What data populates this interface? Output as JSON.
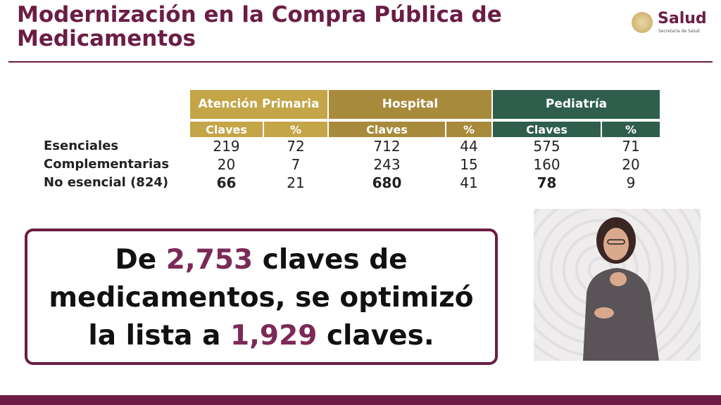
{
  "header": {
    "title": "Modernización en la Compra Pública de Medicamentos"
  },
  "logo": {
    "name": "Salud",
    "subtitle": "Secretaría de Salud"
  },
  "table": {
    "groups": [
      "Atención Primaria",
      "Hospital",
      "Pediatría"
    ],
    "subheaders": [
      "Claves",
      "%"
    ],
    "rows": [
      {
        "label": "Esenciales",
        "values": [
          219,
          72,
          712,
          44,
          575,
          71
        ]
      },
      {
        "label": "Complementarias",
        "values": [
          20,
          7,
          243,
          15,
          160,
          20
        ]
      },
      {
        "label": "No esencial (824)",
        "values": [
          66,
          21,
          680,
          41,
          78,
          9
        ]
      }
    ]
  },
  "callout": {
    "lines": [
      [
        {
          "text": "De"
        },
        {
          "text": "2,753",
          "highlight": true
        },
        {
          "text": "claves de"
        }
      ],
      [
        {
          "text": "medicamentos, se optimizó"
        }
      ],
      [
        {
          "text": "la lista a"
        },
        {
          "text": "1,929",
          "highlight": true
        },
        {
          "text": "claves."
        }
      ]
    ]
  }
}
